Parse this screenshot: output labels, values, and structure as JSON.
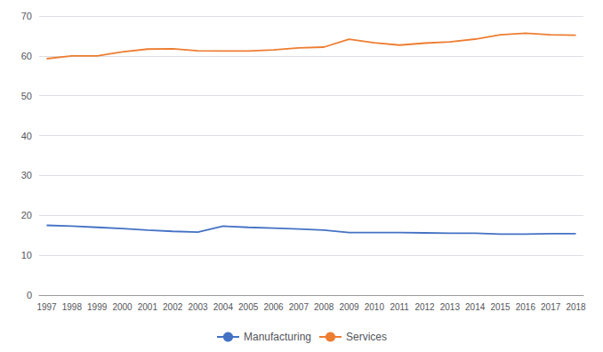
{
  "chart_data": {
    "type": "line",
    "x": [
      1997,
      1998,
      1999,
      2000,
      2001,
      2002,
      2003,
      2004,
      2005,
      2006,
      2007,
      2008,
      2009,
      2010,
      2011,
      2012,
      2013,
      2014,
      2015,
      2016,
      2017,
      2018
    ],
    "series": [
      {
        "name": "Manufacturing",
        "color": "#4472C4",
        "values": [
          17.5,
          17.3,
          17.0,
          16.7,
          16.3,
          16.0,
          15.8,
          17.3,
          17.0,
          16.8,
          16.6,
          16.3,
          15.7,
          15.7,
          15.7,
          15.6,
          15.5,
          15.5,
          15.3,
          15.3,
          15.4,
          15.4
        ]
      },
      {
        "name": "Services",
        "color": "#ED7D31",
        "values": [
          59.3,
          60.0,
          60.0,
          61.0,
          61.7,
          61.8,
          61.3,
          61.2,
          61.2,
          61.5,
          62.0,
          62.2,
          64.2,
          63.3,
          62.7,
          63.2,
          63.5,
          64.2,
          65.3,
          65.7,
          65.3,
          65.2
        ]
      }
    ],
    "xlim": [
      1996.7,
      2018.3
    ],
    "xticks": [
      1997,
      1998,
      1999,
      2000,
      2001,
      2002,
      2003,
      2004,
      2005,
      2006,
      2007,
      2008,
      2009,
      2010,
      2011,
      2012,
      2013,
      2014,
      2015,
      2016,
      2017,
      2018
    ],
    "ylim": [
      0,
      70
    ],
    "yticks": [
      0,
      10,
      20,
      30,
      40,
      50,
      60,
      70
    ],
    "grid": true,
    "legend": "bottom"
  }
}
